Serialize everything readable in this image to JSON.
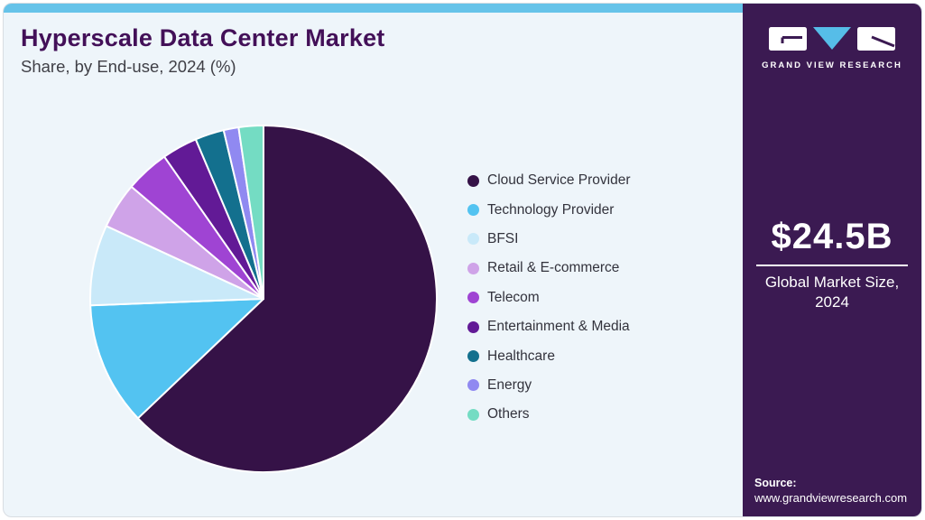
{
  "header": {
    "title": "Hyperscale Data Center Market",
    "subtitle": "Share, by End-use, 2024 (%)"
  },
  "chart_data": {
    "type": "pie",
    "title": "Hyperscale Data Center Market Share, by End-use, 2024 (%)",
    "unit": "%",
    "start_angle_deg": 0,
    "direction": "clockwise",
    "legend_position": "right",
    "categories": [
      "Cloud Service Provider",
      "Technology Provider",
      "BFSI",
      "Retail & E-commerce",
      "Telecom",
      "Entertainment & Media",
      "Healthcare",
      "Energy",
      "Others"
    ],
    "values": [
      62.9,
      11.5,
      7.5,
      4.3,
      4.1,
      3.3,
      2.7,
      1.4,
      2.3
    ],
    "colors": [
      "#351247",
      "#53c3f1",
      "#c9e9f9",
      "#cfa3e8",
      "#9f44d3",
      "#621a96",
      "#13708e",
      "#9089f1",
      "#74dcc3"
    ]
  },
  "sidebar": {
    "logo": {
      "brand": "GRAND VIEW RESEARCH"
    },
    "market_size": {
      "value": "$24.5B",
      "label": "Global Market Size, 2024"
    },
    "source": {
      "label": "Source:",
      "url": "www.grandviewresearch.com"
    }
  },
  "colors": {
    "accent_blue": "#66c3e9",
    "sidebar_purple": "#3b1a52",
    "title_purple": "#431058",
    "content_background": "#eef5fa",
    "logo_triangle_blue": "#56bde8"
  }
}
